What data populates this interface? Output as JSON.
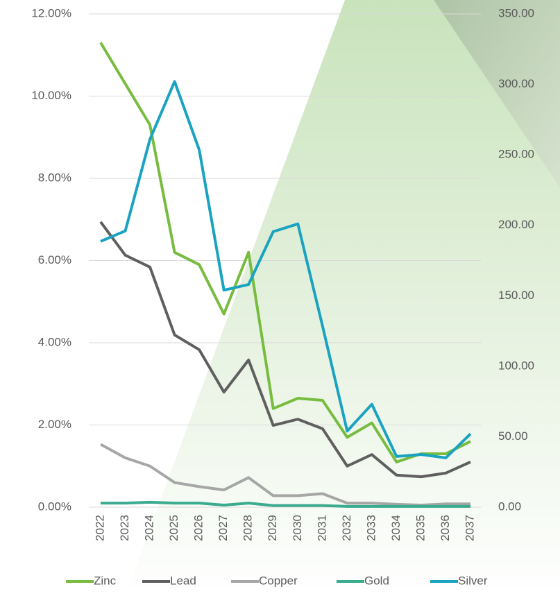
{
  "chart_data": {
    "type": "line",
    "categories": [
      "2022",
      "2023",
      "2024",
      "2025",
      "2026",
      "2027",
      "2028",
      "2029",
      "2030",
      "2031",
      "2032",
      "2033",
      "2034",
      "2035",
      "2036",
      "2037"
    ],
    "series": [
      {
        "name": "Zinc",
        "color": "#77bc3f",
        "values": [
          11.3,
          10.3,
          9.3,
          6.2,
          5.9,
          4.7,
          6.2,
          2.4,
          2.65,
          2.6,
          1.7,
          2.05,
          1.1,
          1.3,
          1.3,
          1.6
        ]
      },
      {
        "name": "Lead",
        "color": "#5f5f5f",
        "values": [
          6.94,
          6.13,
          5.84,
          4.19,
          3.83,
          2.8,
          3.58,
          1.99,
          2.14,
          1.91,
          1.0,
          1.28,
          0.78,
          0.74,
          0.83,
          1.1
        ]
      },
      {
        "name": "Copper",
        "color": "#a6a6a6",
        "values": [
          1.53,
          1.2,
          1.0,
          0.6,
          0.5,
          0.42,
          0.72,
          0.28,
          0.28,
          0.33,
          0.1,
          0.1,
          0.07,
          0.05,
          0.08,
          0.08
        ]
      },
      {
        "name": "Gold",
        "color": "#3aab8e",
        "values": [
          0.1,
          0.1,
          0.12,
          0.1,
          0.1,
          0.05,
          0.1,
          0.04,
          0.04,
          0.04,
          0.02,
          0.02,
          0.02,
          0.02,
          0.02,
          0.02
        ]
      },
      {
        "name": "Silver",
        "color": "#1aa3c0",
        "axis": "y2",
        "values": [
          188.6,
          196,
          261,
          302,
          253.5,
          154,
          158,
          195.5,
          201,
          128.5,
          54,
          73,
          36,
          37.4,
          35,
          52
        ]
      }
    ],
    "ylim": [
      0,
      12
    ],
    "yticks": [
      {
        "value": 0,
        "label": "0.00%"
      },
      {
        "value": 2,
        "label": "2.00%"
      },
      {
        "value": 4,
        "label": "4.00%"
      },
      {
        "value": 6,
        "label": "6.00%"
      },
      {
        "value": 8,
        "label": "8.00%"
      },
      {
        "value": 10,
        "label": "10.00%"
      },
      {
        "value": 12,
        "label": "12.00%"
      }
    ],
    "y2lim": [
      0,
      350
    ],
    "y2ticks": [
      {
        "value": 0,
        "label": "0.00"
      },
      {
        "value": 50,
        "label": "50.00"
      },
      {
        "value": 100,
        "label": "100.00"
      },
      {
        "value": 150,
        "label": "150.00"
      },
      {
        "value": 200,
        "label": "200.00"
      },
      {
        "value": 250,
        "label": "250.00"
      },
      {
        "value": 300,
        "label": "300.00"
      },
      {
        "value": 350,
        "label": "350.00"
      }
    ],
    "grid": true,
    "legend": "bottom"
  }
}
